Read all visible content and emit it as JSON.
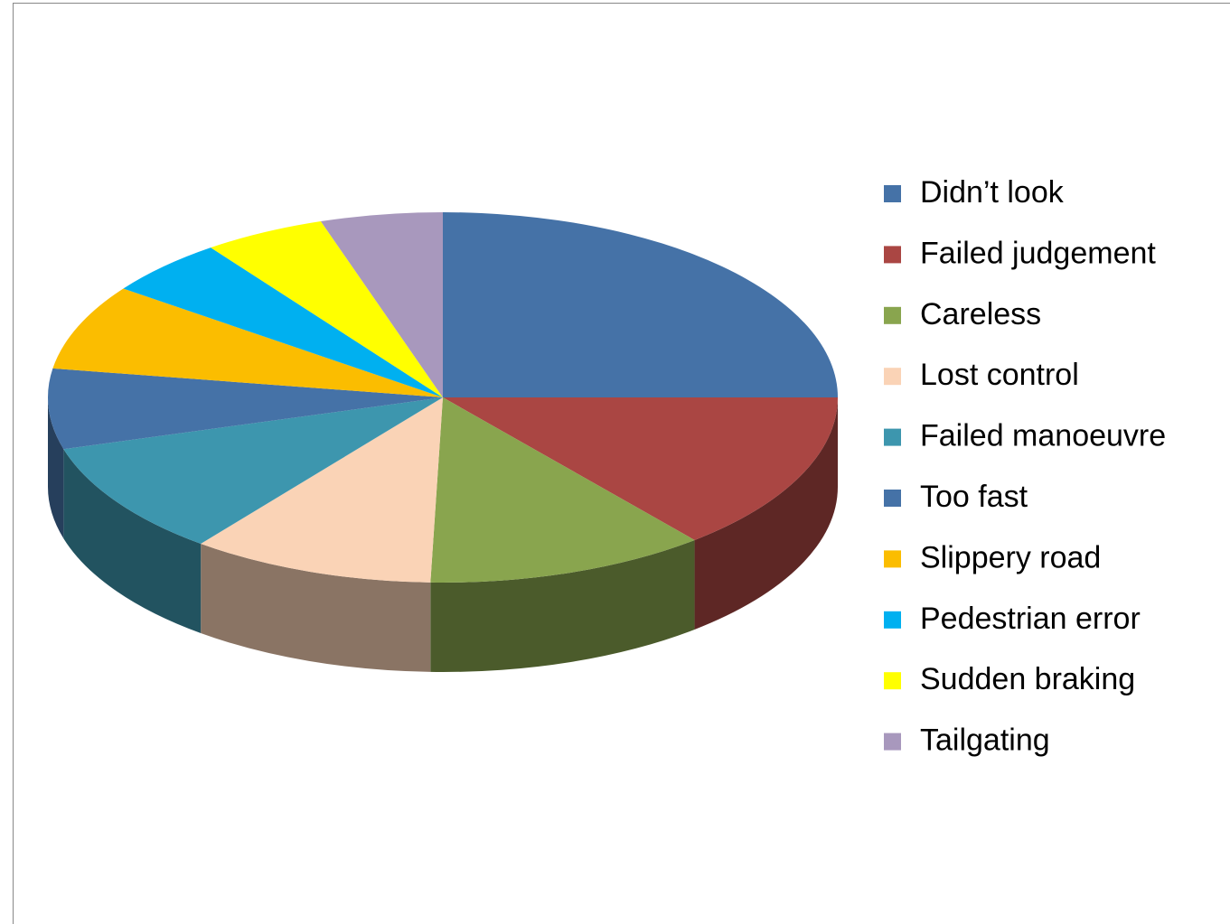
{
  "chart_data": {
    "type": "pie",
    "categories": [
      "Didn’t look",
      "Failed judgement",
      "Careless",
      "Lost control",
      "Failed manoeuvre",
      "Too fast",
      "Slippery road",
      "Pedestrian error",
      "Sudden braking",
      "Tailgating"
    ],
    "values": [
      25,
      14,
      11.5,
      10,
      10,
      7,
      7.5,
      5,
      5,
      5
    ],
    "colors": [
      "#4572a7",
      "#aa4643",
      "#89a54e",
      "#fad3b6",
      "#3d96ae",
      "#4572a7",
      "#fbbd00",
      "#00b0f0",
      "#ffff00",
      "#a898bd"
    ],
    "legend": "right"
  }
}
